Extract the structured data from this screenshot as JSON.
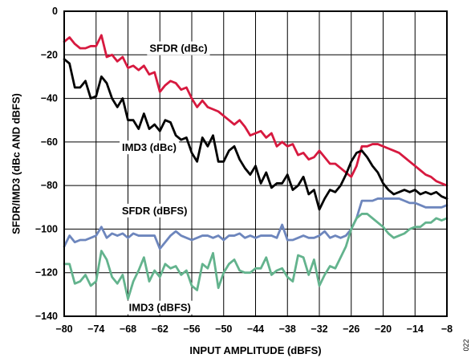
{
  "chart_data": {
    "type": "line",
    "xlabel": "INPUT AMPLITUDE (dBFS)",
    "ylabel": "SFDR/IMD3 (dBc AND dBFS)",
    "xlim": [
      -80,
      -8
    ],
    "ylim": [
      -140,
      0
    ],
    "x_ticks": [
      -80,
      -74,
      -68,
      -62,
      -56,
      -50,
      -44,
      -38,
      -32,
      -26,
      -20,
      -14,
      -8
    ],
    "y_ticks": [
      0,
      -20,
      -40,
      -60,
      -80,
      -100,
      -120,
      -140
    ],
    "grid": true,
    "figure_id": "022",
    "x": [
      -80,
      -79,
      -78,
      -77,
      -76,
      -75,
      -74,
      -73,
      -72,
      -71,
      -70,
      -69,
      -68,
      -67,
      -66,
      -65,
      -64,
      -63,
      -62,
      -61,
      -60,
      -59,
      -58,
      -57,
      -56,
      -55,
      -54,
      -53,
      -52,
      -51,
      -50,
      -49,
      -48,
      -47,
      -46,
      -45,
      -44,
      -43,
      -42,
      -41,
      -40,
      -39,
      -38,
      -37,
      -36,
      -35,
      -34,
      -33,
      -32,
      -31,
      -30,
      -29,
      -28,
      -27,
      -26,
      -25,
      -24,
      -23,
      -22,
      -21,
      -20,
      -19,
      -18,
      -17,
      -16,
      -15,
      -14,
      -13,
      -12,
      -11,
      -10,
      -9,
      -8
    ],
    "series": [
      {
        "name": "SFDR (dBc)",
        "color": "#d7193f",
        "values": [
          -14,
          -12,
          -15,
          -17,
          -17,
          -16,
          -16,
          -11,
          -21,
          -20,
          -23,
          -21,
          -26,
          -25,
          -27,
          -25,
          -29,
          -28,
          -37,
          -34,
          -32,
          -33,
          -36,
          -35,
          -40,
          -44,
          -41,
          -44,
          -45,
          -46,
          -48,
          -50,
          -52,
          -50,
          -53,
          -57,
          -56,
          -55,
          -58,
          -56,
          -62,
          -60,
          -62,
          -61,
          -66,
          -65,
          -68,
          -67,
          -64,
          -67,
          -70,
          -70,
          -72,
          -74,
          -76,
          -71,
          -62,
          -62,
          -61,
          -61,
          -62,
          -63,
          -64,
          -65,
          -67,
          -69,
          -71,
          -73,
          -75,
          -76,
          -78,
          -79,
          -80
        ]
      },
      {
        "name": "IMD3 (dBc)",
        "color": "#000000",
        "values": [
          -22,
          -24,
          -35,
          -35,
          -32,
          -40,
          -39,
          -30,
          -33,
          -40,
          -44,
          -40,
          -50,
          -50,
          -54,
          -47,
          -54,
          -52,
          -55,
          -50,
          -51,
          -57,
          -59,
          -58,
          -65,
          -69,
          -58,
          -62,
          -57,
          -69,
          -69,
          -64,
          -62,
          -68,
          -72,
          -75,
          -71,
          -79,
          -74,
          -81,
          -79,
          -79,
          -75,
          -82,
          -80,
          -76,
          -84,
          -82,
          -91,
          -86,
          -82,
          -83,
          -80,
          -75,
          -69,
          -65,
          -64,
          -67,
          -71,
          -74,
          -79,
          -82,
          -84,
          -83,
          -82,
          -83,
          -82,
          -84,
          -83,
          -84,
          -83,
          -85,
          -86
        ]
      },
      {
        "name": "SFDR (dBFS)",
        "color": "#6d86bd",
        "values": [
          -108,
          -103,
          -106,
          -105,
          -105,
          -104,
          -103,
          -99,
          -104,
          -102,
          -103,
          -102,
          -104,
          -102,
          -103,
          -103,
          -103,
          -103,
          -109,
          -106,
          -103,
          -101,
          -103,
          -104,
          -105,
          -104,
          -103,
          -103,
          -104,
          -103,
          -105,
          -103,
          -103,
          -102,
          -104,
          -103,
          -104,
          -103,
          -103,
          -103,
          -104,
          -98,
          -105,
          -105,
          -104,
          -103,
          -104,
          -104,
          -103,
          -101,
          -104,
          -103,
          -104,
          -103,
          -100,
          -95,
          -87,
          -87,
          -87,
          -86,
          -86,
          -86,
          -86,
          -86,
          -87,
          -88,
          -88,
          -89,
          -90,
          -90,
          -90,
          -90,
          -89
        ]
      },
      {
        "name": "IMD3 (dBFS)",
        "color": "#63b38d",
        "values": [
          -116,
          -116,
          -125,
          -124,
          -121,
          -126,
          -124,
          -110,
          -114,
          -122,
          -125,
          -121,
          -132,
          -124,
          -119,
          -113,
          -124,
          -119,
          -122,
          -116,
          -118,
          -117,
          -121,
          -119,
          -126,
          -128,
          -116,
          -118,
          -111,
          -127,
          -120,
          -116,
          -114,
          -119,
          -120,
          -120,
          -118,
          -118,
          -113,
          -121,
          -119,
          -118,
          -122,
          -124,
          -112,
          -113,
          -121,
          -114,
          -126,
          -121,
          -117,
          -118,
          -113,
          -108,
          -100,
          -95,
          -93,
          -93,
          -95,
          -97,
          -99,
          -102,
          -104,
          -103,
          -102,
          -100,
          -99,
          -99,
          -97,
          -97,
          -95,
          -96,
          -95
        ]
      }
    ],
    "annotations": [
      {
        "text": "SFDR (dBc)",
        "x": -58.5,
        "y": -17
      },
      {
        "text": "IMD3 (dBc)",
        "x": -64,
        "y": -62.5
      },
      {
        "text": "SFDR (dBFS)",
        "x": -63,
        "y": -91.5
      },
      {
        "text": "IMD3 (dBFS)",
        "x": -62,
        "y": -136
      }
    ]
  }
}
